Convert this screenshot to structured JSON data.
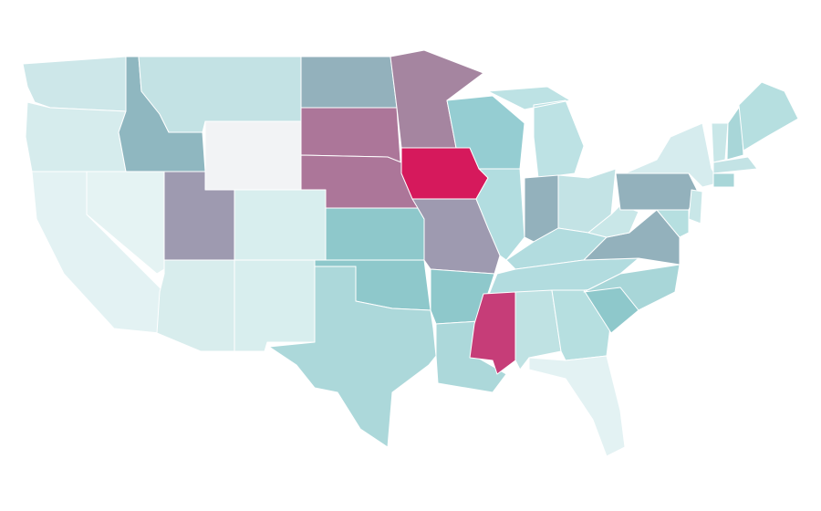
{
  "map": {
    "regions": [
      {
        "color": "#cde7e9"
      },
      {
        "color": "#d6eced"
      },
      {
        "color": "#e3f2f3"
      },
      {
        "color": "#e5f3f3"
      },
      {
        "color": "#8fb7c0"
      },
      {
        "color": "#c3e2e4"
      },
      {
        "color": "#f2f3f5"
      },
      {
        "color": "#9e9ab0"
      },
      {
        "color": "#d8eeee"
      },
      {
        "color": "#d8eded"
      },
      {
        "color": "#d8eeee"
      },
      {
        "color": "#93b1bc"
      },
      {
        "color": "#ac7699"
      },
      {
        "color": "#ac7699"
      },
      {
        "color": "#8ec8cb"
      },
      {
        "color": "#8ec8cb"
      },
      {
        "color": "#acd8da"
      },
      {
        "color": "#a585a0"
      },
      {
        "color": "#d6195c"
      },
      {
        "color": "#9e9ab0"
      },
      {
        "color": "#8ec8cb"
      },
      {
        "color": "#acd8da"
      },
      {
        "color": "#95cdd2"
      },
      {
        "color": "#b2dde0"
      },
      {
        "color": "#bde2e4"
      },
      {
        "color": "#93b1bc"
      },
      {
        "color": "#c3e3e5"
      },
      {
        "color": "#b2dcdf"
      },
      {
        "color": "#b2dcdf"
      },
      {
        "color": "#c63d78"
      },
      {
        "color": "#bfe2e3"
      },
      {
        "color": "#b6dfe0"
      },
      {
        "color": "#e3f2f3"
      },
      {
        "color": "#8ec8cb"
      },
      {
        "color": "#a8d6d8"
      },
      {
        "color": "#93b1bc"
      },
      {
        "color": "#c9e7e8"
      },
      {
        "color": "#93b1bc"
      },
      {
        "color": "#d6ecee"
      },
      {
        "color": "#c9e7e8"
      },
      {
        "color": "#a8d6d8"
      },
      {
        "color": "#b6dfe0"
      },
      {
        "color": "#c3e3e5"
      },
      {
        "color": "#a8d6d8"
      },
      {
        "color": "#c9e7e8"
      },
      {
        "color": "#b6dfe0"
      }
    ]
  }
}
